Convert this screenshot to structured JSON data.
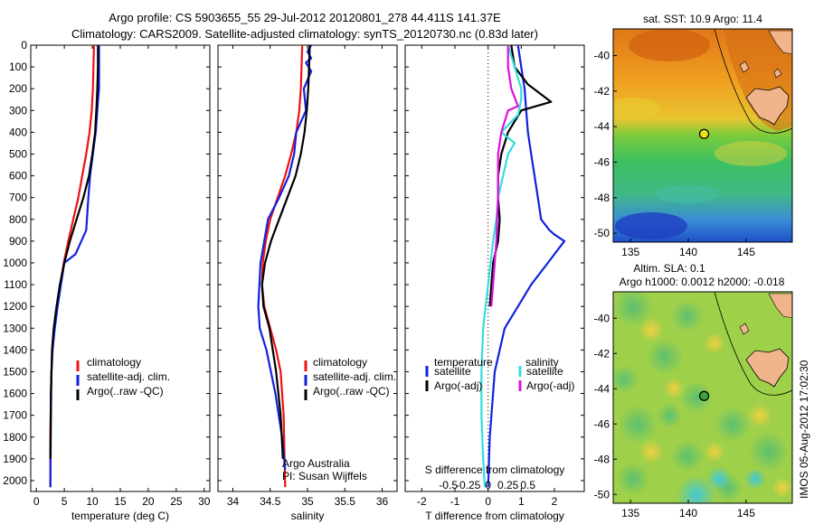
{
  "title": {
    "line1": "Argo profile: CS 5903655_55 29-Jul-2012 20120801_278 44.411S 141.37E",
    "line2": "Climatology: CARS2009. Satellite-adjusted climatology: synTS_20120730.nc (0.83d later)"
  },
  "colors": {
    "climatology": "#ee1111",
    "satellite": "#1122dd",
    "argo": "#000000",
    "sat_salinity": "#33dddd",
    "argo_salinity_adj": "#dd11dd"
  },
  "chart_data": [
    {
      "type": "line",
      "panel": "temperature",
      "xlabel": "temperature (deg C)",
      "ylabel": "",
      "xlim": [
        -1,
        31
      ],
      "ylim": [
        2050,
        0
      ],
      "xticks": [
        0,
        5,
        10,
        15,
        20,
        25,
        30
      ],
      "yticks": [
        0,
        100,
        200,
        300,
        400,
        500,
        600,
        700,
        800,
        900,
        1000,
        1100,
        1200,
        1300,
        1400,
        1500,
        1600,
        1700,
        1800,
        1900,
        2000
      ],
      "legend": [
        "climatology",
        "satellite-adj. clim.",
        "Argo(..raw -QC)"
      ],
      "series": [
        {
          "name": "climatology",
          "color": "#ee1111",
          "x": [
            10.3,
            10.2,
            10.1,
            9.9,
            9.5,
            8.9,
            8.2,
            7.5,
            6.6,
            5.7,
            4.9,
            4.3,
            3.7,
            3.2,
            2.9,
            2.7,
            2.6,
            2.5,
            2.5
          ],
          "y": [
            0,
            100,
            200,
            300,
            400,
            500,
            600,
            700,
            800,
            900,
            1000,
            1100,
            1200,
            1300,
            1400,
            1500,
            1600,
            1800,
            2030
          ]
        },
        {
          "name": "satellite-adj. clim.",
          "color": "#1122dd",
          "x": [
            11.2,
            11.2,
            11.2,
            11.0,
            10.6,
            10.1,
            9.6,
            9.3,
            8.9,
            7.0,
            5.0,
            4.4,
            3.8,
            3.3,
            2.9,
            2.7,
            2.6,
            2.5
          ],
          "y": [
            0,
            100,
            200,
            260,
            400,
            500,
            600,
            700,
            850,
            960,
            1000,
            1100,
            1200,
            1300,
            1400,
            1500,
            1700,
            2030
          ]
        },
        {
          "name": "Argo(..raw -QC)",
          "color": "#000000",
          "x": [
            11.0,
            11.0,
            10.9,
            10.8,
            10.5,
            10.0,
            9.4,
            8.4,
            7.2,
            6.0,
            5.0,
            4.2,
            3.6,
            3.1,
            2.8,
            2.6,
            2.5
          ],
          "y": [
            0,
            100,
            200,
            260,
            400,
            500,
            600,
            700,
            800,
            900,
            1000,
            1100,
            1200,
            1300,
            1400,
            1600,
            1900
          ]
        }
      ]
    },
    {
      "type": "line",
      "panel": "salinity",
      "xlabel": "salinity",
      "ylabel": "",
      "xlim": [
        33.8,
        36.2
      ],
      "ylim": [
        2050,
        0
      ],
      "xticks": [
        34,
        34.5,
        35,
        35.5,
        36
      ],
      "legend": [
        "climatology",
        "satellite-adj. clim.",
        "Argo(..raw -QC)"
      ],
      "annotations": [
        "Argo Australia",
        "PI: Susan Wijffels"
      ],
      "series": [
        {
          "name": "climatology",
          "color": "#ee1111",
          "x": [
            34.93,
            34.92,
            34.91,
            34.89,
            34.85,
            34.78,
            34.7,
            34.6,
            34.5,
            34.44,
            34.4,
            34.39,
            34.42,
            34.5,
            34.58,
            34.64,
            34.68,
            34.7
          ],
          "y": [
            0,
            100,
            200,
            300,
            400,
            500,
            600,
            700,
            800,
            900,
            1000,
            1100,
            1200,
            1300,
            1400,
            1500,
            1700,
            2030
          ]
        },
        {
          "name": "satellite-adj. clim.",
          "color": "#1122dd",
          "x": [
            35.05,
            35.0,
            35.05,
            34.98,
            35.05,
            34.95,
            34.98,
            34.85,
            34.82,
            34.75,
            34.62,
            34.47,
            34.37,
            34.34,
            34.36,
            34.45,
            34.57,
            34.66,
            34.7
          ],
          "y": [
            0,
            30,
            60,
            80,
            120,
            200,
            300,
            400,
            500,
            600,
            700,
            800,
            1000,
            1200,
            1300,
            1400,
            1600,
            1800,
            1950
          ]
        },
        {
          "name": "Argo(..raw -QC)",
          "color": "#000000",
          "x": [
            35.03,
            35.02,
            35.01,
            35.0,
            34.99,
            34.96,
            34.91,
            34.84,
            34.73,
            34.62,
            34.51,
            34.43,
            34.39,
            34.41,
            34.49,
            34.58,
            34.64,
            34.67
          ],
          "y": [
            0,
            100,
            200,
            250,
            300,
            400,
            500,
            600,
            700,
            800,
            900,
            1000,
            1100,
            1200,
            1300,
            1500,
            1700,
            1900
          ]
        }
      ]
    },
    {
      "type": "line",
      "panel": "difference",
      "xlabel": "T difference from climatology",
      "top_axis_label": "S difference from climatology",
      "xlim": [
        -2.5,
        2.9
      ],
      "ylim": [
        2050,
        0
      ],
      "xticks": [
        -2,
        -1,
        0,
        1,
        2
      ],
      "xticks_s": [
        -0.5,
        -0.25,
        0,
        0.25,
        0.5
      ],
      "legend_title_t": "temperature",
      "legend_title_s": "salinity",
      "legend": [
        "satellite",
        "Argo(-adj)",
        "satellite",
        "Argo(-adj)"
      ],
      "series": [
        {
          "name": "satellite",
          "quantity": "temperature",
          "color": "#1122dd",
          "x": [
            0.9,
            1.0,
            1.1,
            1.15,
            1.2,
            1.3,
            1.4,
            1.5,
            1.6,
            1.85,
            2.0,
            2.3,
            1.8,
            1.3,
            0.9,
            0.5,
            0.2,
            0.05,
            0.0
          ],
          "y": [
            0,
            100,
            200,
            300,
            400,
            500,
            600,
            700,
            800,
            850,
            870,
            900,
            1000,
            1100,
            1200,
            1300,
            1500,
            1800,
            2030
          ]
        },
        {
          "name": "Argo(-adj)",
          "quantity": "temperature",
          "color": "#000000",
          "x": [
            0.7,
            0.8,
            1.2,
            1.9,
            1.0,
            0.6,
            0.4,
            0.3,
            0.3,
            0.35,
            0.3,
            0.15,
            0.1,
            0.05
          ],
          "y": [
            0,
            100,
            180,
            260,
            300,
            400,
            500,
            600,
            700,
            800,
            900,
            1000,
            1100,
            1200
          ]
        },
        {
          "name": "satellite",
          "quantity": "salinity",
          "color": "#33dddd",
          "x": [
            0.6,
            0.8,
            1.0,
            1.0,
            0.9,
            0.4,
            0.8,
            0.6,
            0.45,
            0.3,
            0.25,
            0.15,
            0.0,
            -0.15,
            -0.2,
            -0.2,
            -0.15,
            -0.1
          ],
          "y": [
            0,
            100,
            200,
            250,
            320,
            400,
            450,
            500,
            600,
            700,
            800,
            900,
            1100,
            1300,
            1500,
            1700,
            1900,
            2030
          ]
        },
        {
          "name": "Argo(-adj)",
          "quantity": "salinity",
          "color": "#dd11dd",
          "x": [
            0.6,
            0.6,
            0.7,
            0.9,
            0.6,
            0.4,
            0.3,
            0.3,
            0.25,
            0.2,
            0.1
          ],
          "y": [
            0,
            100,
            200,
            280,
            300,
            400,
            500,
            700,
            900,
            1000,
            1200
          ]
        }
      ]
    },
    {
      "type": "heatmap",
      "panel": "sst-map",
      "title": "sat. SST: 10.9 Argo: 11.4",
      "xlim": [
        133.5,
        149
      ],
      "ylim": [
        -50.5,
        -38.5
      ],
      "xticks": [
        135,
        140,
        145
      ],
      "yticks": [
        -40,
        -42,
        -44,
        -46,
        -48,
        -50
      ],
      "marker": {
        "lon": 141.37,
        "lat": -44.411
      }
    },
    {
      "type": "heatmap",
      "panel": "sla-map",
      "title": "Altim. SLA: 0.1",
      "subtitle": "Argo h1000: 0.0012 h2000: -0.018",
      "xlim": [
        133.5,
        149
      ],
      "ylim": [
        -50.5,
        -38.5
      ],
      "xticks": [
        135,
        140,
        145
      ],
      "yticks": [
        -40,
        -42,
        -44,
        -46,
        -48,
        -50
      ],
      "marker": {
        "lon": 141.37,
        "lat": -44.411
      }
    }
  ],
  "footer": {
    "stamp": "IMOS 05-Aug-2012 17:02:30"
  }
}
